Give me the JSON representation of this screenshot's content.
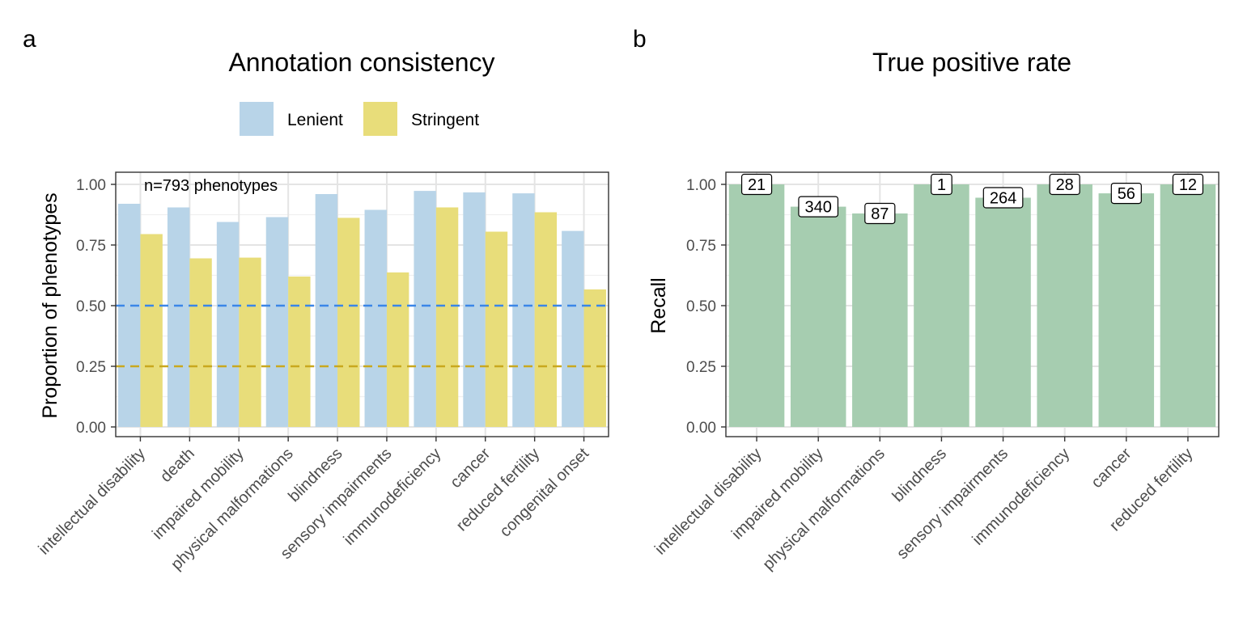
{
  "chart_data": [
    {
      "panel": "a",
      "type": "bar",
      "title": "Annotation consistency",
      "ylabel": "Proportion of phenotypes",
      "xlabel": "",
      "ylim": [
        -0.04,
        1.05
      ],
      "yticks": [
        "0.00",
        "0.25",
        "0.50",
        "0.75",
        "1.00"
      ],
      "grid": true,
      "legend_position": "top",
      "annotation": "n=793 phenotypes",
      "categories": [
        "intellectual disability",
        "death",
        "impaired mobility",
        "physical malformations",
        "blindness",
        "sensory impairments",
        "immunodeficiency",
        "cancer",
        "reduced fertility",
        "congenital onset"
      ],
      "series": [
        {
          "name": "Lenient",
          "color": "#b8d4e8",
          "values": [
            0.92,
            0.905,
            0.845,
            0.865,
            0.96,
            0.895,
            0.973,
            0.967,
            0.963,
            0.808
          ]
        },
        {
          "name": "Stringent",
          "color": "#e8dd7a",
          "values": [
            0.795,
            0.695,
            0.698,
            0.62,
            0.862,
            0.637,
            0.905,
            0.805,
            0.885,
            0.567
          ]
        }
      ],
      "reference_lines": [
        {
          "y": 0.5,
          "color": "#3a86e8"
        },
        {
          "y": 0.25,
          "color": "#c9a81e"
        }
      ]
    },
    {
      "panel": "b",
      "type": "bar",
      "title": "True positive rate",
      "ylabel": "Recall",
      "xlabel": "",
      "ylim": [
        -0.04,
        1.05
      ],
      "yticks": [
        "0.00",
        "0.25",
        "0.50",
        "0.75",
        "1.00"
      ],
      "grid": true,
      "color": "#a6cdb0",
      "categories": [
        "intellectual disability",
        "impaired mobility",
        "physical malformations",
        "blindness",
        "sensory impairments",
        "immunodeficiency",
        "cancer",
        "reduced fertility"
      ],
      "values": [
        1.0,
        0.908,
        0.88,
        1.0,
        0.945,
        1.0,
        0.963,
        1.0
      ],
      "labels": [
        "21",
        "340",
        "87",
        "1",
        "264",
        "28",
        "56",
        "12"
      ]
    }
  ]
}
